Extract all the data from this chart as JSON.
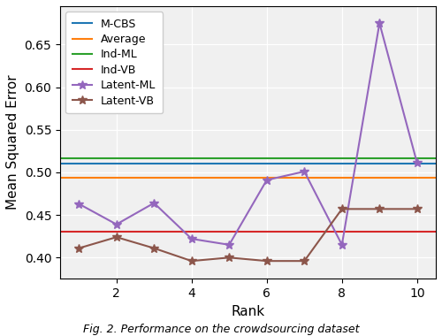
{
  "ranks": [
    1,
    2,
    3,
    4,
    5,
    6,
    7,
    8,
    9,
    10
  ],
  "latent_ml": [
    0.463,
    0.439,
    0.464,
    0.422,
    0.415,
    0.491,
    0.501,
    0.415,
    0.675,
    0.511
  ],
  "latent_vb": [
    0.411,
    0.424,
    0.411,
    0.396,
    0.4,
    0.396,
    0.396,
    0.457,
    0.457,
    0.457
  ],
  "mcbs_val": 0.51,
  "average_val": 0.494,
  "ind_ml_val": 0.517,
  "ind_vb_val": 0.43,
  "mcbs_color": "#1f77b4",
  "average_color": "#ff7f0e",
  "ind_ml_color": "#2ca02c",
  "ind_vb_color": "#d62728",
  "latent_ml_color": "#9467bd",
  "latent_vb_color": "#8c564b",
  "xlabel": "Rank",
  "ylabel": "Mean Squared Error",
  "ylim_min": 0.375,
  "ylim_max": 0.695,
  "xlim_min": 0.5,
  "xlim_max": 10.5,
  "xticks": [
    2,
    4,
    6,
    8,
    10
  ],
  "yticks": [
    0.4,
    0.45,
    0.5,
    0.55,
    0.6,
    0.65
  ],
  "legend_labels": [
    "M-CBS",
    "Average",
    "Ind-ML",
    "Ind-VB",
    "Latent-ML",
    "Latent-VB"
  ],
  "figure_caption": "Fig. 2. Performance on the crowdsourcing dataset"
}
